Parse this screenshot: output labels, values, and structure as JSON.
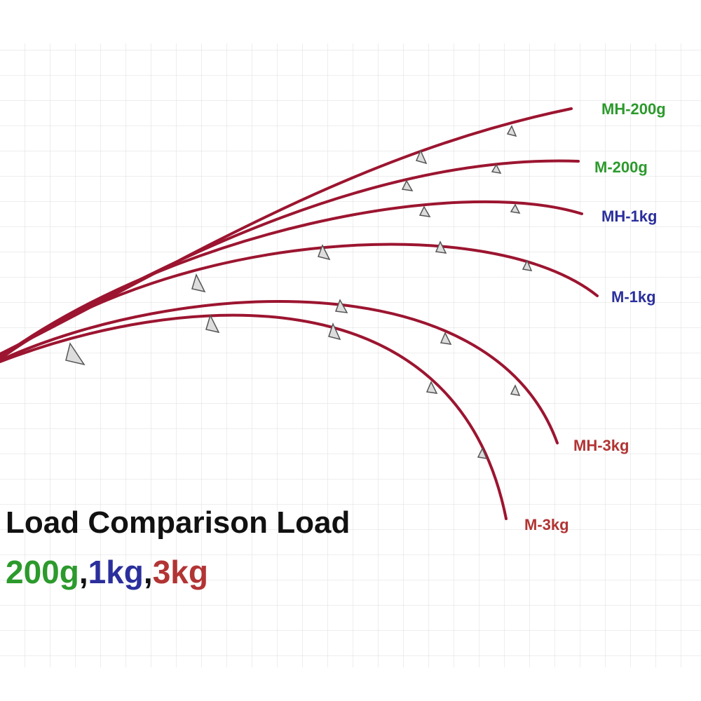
{
  "labels": [
    "MH-200g",
    "M-200g",
    "MH-1kg",
    "M-1kg",
    "MH-3kg",
    "M-3kg"
  ],
  "title": "Load Comparison Load",
  "subtitle": [
    "200g",
    ",",
    "1kg",
    ",",
    "3kg"
  ]
}
